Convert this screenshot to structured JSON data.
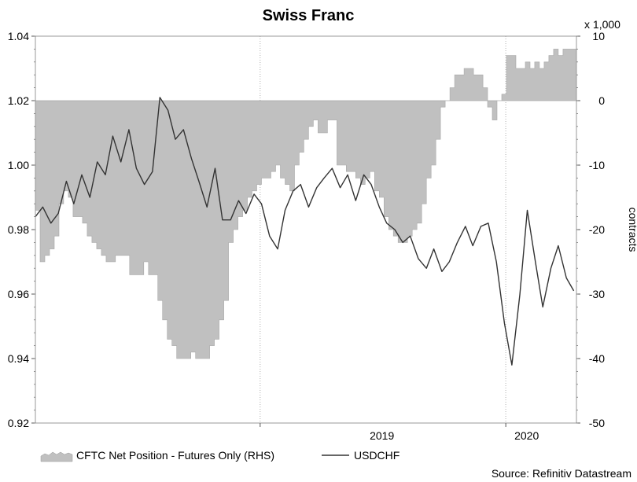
{
  "chart_data": {
    "type": "line",
    "title": "Swiss Franc",
    "left_axis": {
      "ylim": [
        0.92,
        1.04
      ],
      "ticks": [
        "0.92",
        "0.94",
        "0.96",
        "0.98",
        "1.00",
        "1.02",
        "1.04"
      ]
    },
    "right_axis": {
      "label": "contracts",
      "multiplier_label": "x 1,000",
      "ylim": [
        -50,
        10
      ],
      "ticks": [
        "-50",
        "-40",
        "-30",
        "-20",
        "-10",
        "0",
        "10"
      ]
    },
    "x_axis": {
      "range": [
        "2018-02-01",
        "2020-04-15"
      ],
      "year_labels": [
        {
          "label": "2019",
          "date": "2019-07-01"
        },
        {
          "label": "2020",
          "date": "2020-02-01"
        }
      ],
      "year_boundaries": [
        "2019-01-01",
        "2020-01-01"
      ]
    },
    "series": [
      {
        "name": "CFTC Net Position - Futures Only (RHS)",
        "type": "area",
        "axis": "right",
        "color": "#c0c0c0",
        "x": [
          "2018-02-01",
          "2018-02-08",
          "2018-02-15",
          "2018-02-22",
          "2018-03-01",
          "2018-03-08",
          "2018-03-15",
          "2018-03-22",
          "2018-03-29",
          "2018-04-05",
          "2018-04-12",
          "2018-04-19",
          "2018-04-26",
          "2018-05-03",
          "2018-05-10",
          "2018-05-17",
          "2018-05-24",
          "2018-05-31",
          "2018-06-07",
          "2018-06-14",
          "2018-06-21",
          "2018-06-28",
          "2018-07-05",
          "2018-07-12",
          "2018-07-19",
          "2018-07-26",
          "2018-08-02",
          "2018-08-09",
          "2018-08-16",
          "2018-08-23",
          "2018-08-30",
          "2018-09-06",
          "2018-09-13",
          "2018-09-20",
          "2018-09-27",
          "2018-10-04",
          "2018-10-11",
          "2018-10-18",
          "2018-10-25",
          "2018-11-01",
          "2018-11-08",
          "2018-11-15",
          "2018-11-22",
          "2018-11-29",
          "2018-12-06",
          "2018-12-13",
          "2018-12-20",
          "2018-12-27",
          "2019-01-03",
          "2019-01-10",
          "2019-01-17",
          "2019-01-24",
          "2019-01-31",
          "2019-02-07",
          "2019-02-14",
          "2019-02-21",
          "2019-02-28",
          "2019-03-07",
          "2019-03-14",
          "2019-03-21",
          "2019-03-28",
          "2019-04-04",
          "2019-04-11",
          "2019-04-18",
          "2019-04-25",
          "2019-05-02",
          "2019-05-09",
          "2019-05-16",
          "2019-05-23",
          "2019-05-30",
          "2019-06-06",
          "2019-06-13",
          "2019-06-20",
          "2019-06-27",
          "2019-07-04",
          "2019-07-11",
          "2019-07-18",
          "2019-07-25",
          "2019-08-01",
          "2019-08-08",
          "2019-08-15",
          "2019-08-22",
          "2019-08-29",
          "2019-09-05",
          "2019-09-12",
          "2019-09-19",
          "2019-09-26",
          "2019-10-03",
          "2019-10-10",
          "2019-10-17",
          "2019-10-24",
          "2019-10-31",
          "2019-11-07",
          "2019-11-14",
          "2019-11-21",
          "2019-11-28",
          "2019-12-05",
          "2019-12-12",
          "2019-12-19",
          "2019-12-26",
          "2020-01-02",
          "2020-01-09",
          "2020-01-16",
          "2020-01-23",
          "2020-01-30",
          "2020-02-06",
          "2020-02-13",
          "2020-02-20",
          "2020-02-27",
          "2020-03-05",
          "2020-03-12",
          "2020-03-19",
          "2020-03-26",
          "2020-04-02",
          "2020-04-09"
        ],
        "values": [
          -17,
          -25,
          -24,
          -23,
          -21,
          -16,
          -14,
          -15,
          -18,
          -18,
          -19,
          -21,
          -22,
          -23,
          -24,
          -25,
          -25,
          -24,
          -24,
          -24,
          -27,
          -27,
          -27,
          -25,
          -27,
          -27,
          -31,
          -34,
          -37,
          -38,
          -40,
          -40,
          -40,
          -39,
          -40,
          -40,
          -40,
          -38,
          -37,
          -34,
          -31,
          -22,
          -20,
          -18,
          -17,
          -15,
          -14,
          -13,
          -12,
          -12,
          -11,
          -10,
          -12,
          -13,
          -14,
          -10,
          -8,
          -6,
          -4,
          -3,
          -5,
          -5,
          -3,
          -3,
          -10,
          -10,
          -11,
          -11,
          -12,
          -13,
          -12,
          -11,
          -14,
          -15,
          -18,
          -20,
          -21,
          -22,
          -22,
          -21,
          -20,
          -19,
          -16,
          -12,
          -10,
          -6,
          -1,
          0,
          2,
          4,
          4,
          5,
          5,
          4,
          4,
          2,
          -1,
          -3,
          0,
          1,
          7,
          7,
          5,
          5,
          6,
          5,
          6,
          5,
          6,
          7,
          8,
          7,
          8,
          8,
          8
        ]
      },
      {
        "name": "USDCHF",
        "type": "line",
        "axis": "left",
        "color": "#333333",
        "x": [
          "2018-02-01",
          "2018-02-12",
          "2018-02-24",
          "2018-03-07",
          "2018-03-19",
          "2018-03-30",
          "2018-04-11",
          "2018-04-23",
          "2018-05-04",
          "2018-05-16",
          "2018-05-27",
          "2018-06-08",
          "2018-06-20",
          "2018-07-01",
          "2018-07-13",
          "2018-07-25",
          "2018-08-05",
          "2018-08-17",
          "2018-08-28",
          "2018-09-09",
          "2018-09-21",
          "2018-10-02",
          "2018-10-14",
          "2018-10-26",
          "2018-11-06",
          "2018-11-18",
          "2018-11-30",
          "2018-12-11",
          "2018-12-23",
          "2019-01-03",
          "2019-01-15",
          "2019-01-27",
          "2019-02-07",
          "2019-02-19",
          "2019-03-02",
          "2019-03-14",
          "2019-03-26",
          "2019-04-06",
          "2019-04-18",
          "2019-04-30",
          "2019-05-11",
          "2019-05-23",
          "2019-06-04",
          "2019-06-15",
          "2019-06-27",
          "2019-07-08",
          "2019-07-20",
          "2019-08-01",
          "2019-08-12",
          "2019-08-24",
          "2019-09-05",
          "2019-09-16",
          "2019-09-28",
          "2019-10-09",
          "2019-10-21",
          "2019-11-02",
          "2019-11-13",
          "2019-11-25",
          "2019-12-06",
          "2019-12-18",
          "2019-12-30",
          "2020-01-10",
          "2020-01-22",
          "2020-02-02",
          "2020-02-14",
          "2020-02-25",
          "2020-03-08",
          "2020-03-19",
          "2020-03-31",
          "2020-04-11"
        ],
        "values": [
          0.984,
          0.987,
          0.982,
          0.985,
          0.995,
          0.988,
          0.997,
          0.99,
          1.001,
          0.997,
          1.009,
          1.001,
          1.011,
          0.999,
          0.994,
          0.998,
          1.021,
          1.017,
          1.008,
          1.011,
          1.002,
          0.995,
          0.987,
          0.999,
          0.983,
          0.983,
          0.989,
          0.985,
          0.991,
          0.988,
          0.978,
          0.974,
          0.986,
          0.992,
          0.994,
          0.987,
          0.993,
          0.996,
          0.999,
          0.993,
          0.997,
          0.989,
          0.997,
          0.994,
          0.987,
          0.982,
          0.98,
          0.976,
          0.978,
          0.971,
          0.968,
          0.974,
          0.967,
          0.97,
          0.976,
          0.981,
          0.975,
          0.981,
          0.982,
          0.97,
          0.951,
          0.938,
          0.96,
          0.986,
          0.97,
          0.956,
          0.968,
          0.975,
          0.965,
          0.961
        ]
      }
    ],
    "grid": false
  },
  "legend": {
    "area_label": "CFTC Net Position - Futures Only (RHS)",
    "line_label": "USDCHF"
  },
  "source": "Source: Refinitiv Datastream"
}
